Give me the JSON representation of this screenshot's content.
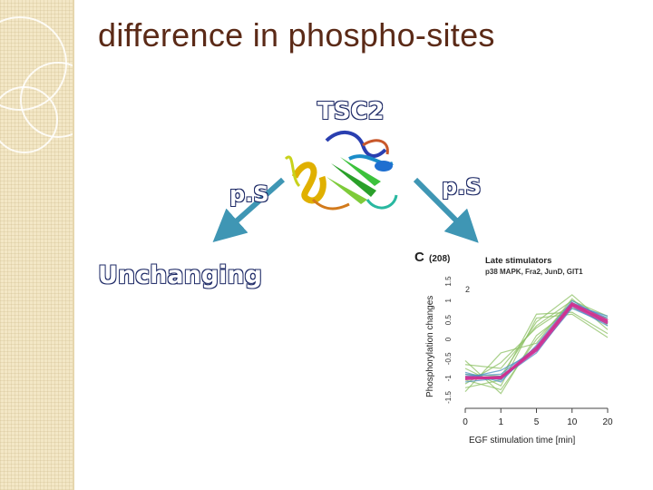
{
  "slide": {
    "title": "difference in phospho-sites",
    "center_label": "TSC2",
    "left_site_label": "p.S",
    "right_site_label": "p.S",
    "left_outcome_label": "Unchanging",
    "colors": {
      "title": "#5b2a17",
      "arrow": "#3f96b4",
      "outline_text_stroke": "#1f2b67",
      "side_strip": "#f3e7c6"
    },
    "icons": [
      "protein-structure-icon",
      "arrow-down-left-icon",
      "arrow-down-right-icon"
    ]
  },
  "panel": {
    "letter": "C",
    "count": "(208)",
    "cluster_title": "Late stimulators",
    "cluster_members": "p38 MAPK, Fra2, JunD, GIT1",
    "inner_tick": "2",
    "xlabel": "EGF stimulation time [min]",
    "ylabel": "Phosphorylation changes"
  },
  "chart_data": {
    "type": "line",
    "title": "Late stimulators",
    "xlabel": "EGF stimulation time [min]",
    "ylabel": "Phosphorylation changes",
    "x": [
      "0",
      "1",
      "5",
      "10",
      "20"
    ],
    "y_ticks": [
      "1.5",
      "1",
      "0.5",
      "0",
      "-0.5",
      "-1",
      "-1.5"
    ],
    "ylim": [
      -1.5,
      1.5
    ],
    "series": [
      {
        "color": "#8cc063",
        "values": [
          -1.15,
          -0.6,
          0.3,
          0.9,
          0.45
        ]
      },
      {
        "color": "#8cc063",
        "values": [
          -0.75,
          -1.2,
          0.55,
          0.65,
          0.05
        ]
      },
      {
        "color": "#8cc063",
        "values": [
          -1.35,
          -0.35,
          -0.1,
          1.05,
          0.25
        ]
      },
      {
        "color": "#8cc063",
        "values": [
          -0.55,
          -1.4,
          0.1,
          0.8,
          0.55
        ]
      },
      {
        "color": "#8cc063",
        "values": [
          -0.9,
          -0.95,
          0.45,
          1.15,
          0.35
        ]
      },
      {
        "color": "#8cc063",
        "values": [
          -1.25,
          -1.05,
          0.65,
          0.7,
          0.15
        ]
      },
      {
        "color": "#8cc063",
        "values": [
          -0.65,
          -0.75,
          0.35,
          1.0,
          0.6
        ]
      },
      {
        "color": "#8cc063",
        "values": [
          -1.05,
          -1.3,
          0.0,
          0.95,
          0.4
        ]
      },
      {
        "color": "#4a8fc4",
        "values": [
          -0.95,
          -0.9,
          -0.2,
          0.95,
          0.55
        ]
      },
      {
        "color": "#4a8fc4",
        "values": [
          -1.1,
          -1.0,
          -0.35,
          0.85,
          0.35
        ]
      },
      {
        "color": "#4a8fc4",
        "values": [
          -0.85,
          -1.1,
          -0.15,
          1.0,
          0.5
        ]
      },
      {
        "color": "#4a8fc4",
        "values": [
          -1.0,
          -0.8,
          -0.3,
          0.8,
          0.4
        ]
      },
      {
        "color": "#4a8fc4",
        "values": [
          -0.9,
          -1.05,
          -0.25,
          0.9,
          0.6
        ]
      },
      {
        "color": "#5566bb",
        "values": [
          -1.0,
          -0.95,
          -0.25,
          0.9,
          0.45
        ]
      },
      {
        "color": "#cc3399",
        "values": [
          -1.02,
          -0.98,
          -0.28,
          0.88,
          0.42
        ]
      },
      {
        "color": "#d0308f",
        "values": [
          -0.98,
          -1.0,
          -0.22,
          0.92,
          0.48
        ]
      }
    ]
  }
}
